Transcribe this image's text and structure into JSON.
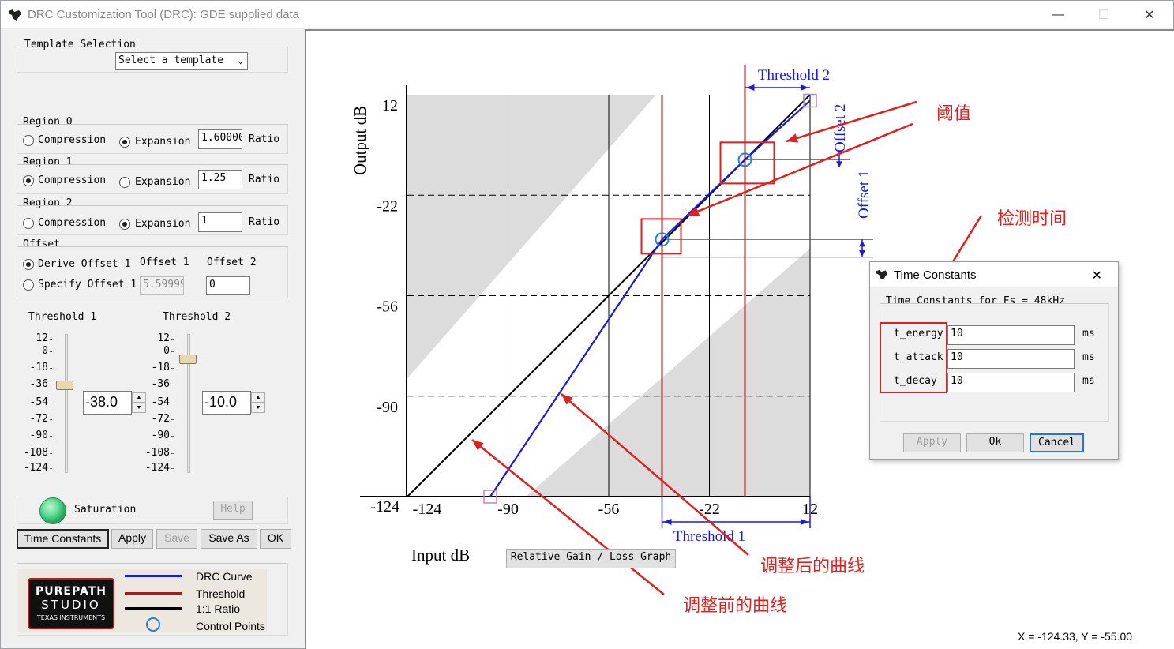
{
  "window": {
    "title": "DRC Customization Tool (DRC):  GDE supplied data",
    "minimize": "—",
    "maximize": "☐",
    "close": "✕"
  },
  "template": {
    "group_label": "Template Selection",
    "selected": "Select a template"
  },
  "regions": [
    {
      "label": "Region 0",
      "compression": "Compression",
      "expansion": "Expansion",
      "selected": "expansion",
      "ratio_value": "1.60000",
      "ratio_label": "Ratio"
    },
    {
      "label": "Region 1",
      "compression": "Compression",
      "expansion": "Expansion",
      "selected": "compression",
      "ratio_value": "1.25",
      "ratio_label": "Ratio"
    },
    {
      "label": "Region 2",
      "compression": "Compression",
      "expansion": "Expansion",
      "selected": "expansion",
      "ratio_value": "1",
      "ratio_label": "Ratio"
    }
  ],
  "offset": {
    "group_label": "Offset",
    "derive": "Derive Offset 1",
    "specify": "Specify Offset 1",
    "offset1_label": "Offset 1",
    "offset2_label": "Offset 2",
    "offset1_value": "5.59999",
    "offset2_value": "0"
  },
  "threshold1": {
    "label": "Threshold 1",
    "value": "-38.0",
    "level": -38
  },
  "threshold2": {
    "label": "Threshold 2",
    "value": "-10.0",
    "level": -10
  },
  "slider_ticks": [
    "12",
    "0",
    "-18",
    "-36",
    "-54",
    "-72",
    "-90",
    "-108",
    "-124"
  ],
  "saturation": {
    "label": "Saturation",
    "help": "Help",
    "color": "#33d17a"
  },
  "buttons": {
    "time_constants": "Time Constants",
    "apply": "Apply",
    "save": "Save",
    "save_as": "Save As",
    "ok": "OK"
  },
  "legend": {
    "logo_line1": "PUREPATH",
    "logo_line2": "STUDIO",
    "logo_line3": "TEXAS INSTRUMENTS",
    "items": [
      {
        "label": "DRC Curve",
        "color": "#1a1adc"
      },
      {
        "label": "Threshold",
        "color": "#a02020"
      },
      {
        "label": "1:1 Ratio",
        "color": "#000000"
      },
      {
        "label": "Control Points",
        "color": "#2a7fd0"
      }
    ]
  },
  "plot": {
    "ylabel": "Output dB",
    "xlabel": "Input dB",
    "x_ticks": [
      "-124",
      "-90",
      "-56",
      "-22",
      "12"
    ],
    "y_ticks": [
      "12",
      "-22",
      "-56",
      "-90",
      "-124"
    ],
    "threshold1_label": "Threshold 1",
    "threshold2_label": "Threshold 2",
    "offset1_label": "Offset 1",
    "offset2_label": "Offset 2",
    "graph_button": "Relative Gain / Loss Graph",
    "coords": "X = -124.33, Y = -55.00"
  },
  "annotations": {
    "threshold": "阈值",
    "detection_time": "检测时间",
    "after_curve": "调整后的曲线",
    "before_curve": "调整前的曲线"
  },
  "time_constants": {
    "title": "Time Constants",
    "close": "✕",
    "group_label": "Time Constants for Fs = 48kHz",
    "rows": [
      {
        "label": "t_energy",
        "value": "10",
        "unit": "ms"
      },
      {
        "label": "t_attack",
        "value": "10",
        "unit": "ms"
      },
      {
        "label": "t_decay",
        "value": "10",
        "unit": "ms"
      }
    ],
    "apply": "Apply",
    "ok": "Ok",
    "cancel": "Cancel"
  }
}
